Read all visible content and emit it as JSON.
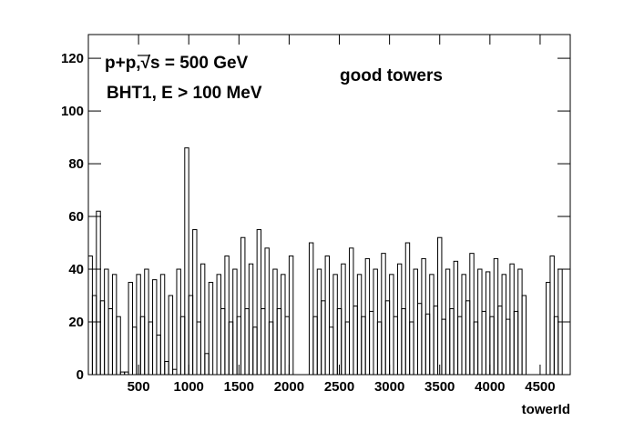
{
  "chart_data": {
    "type": "histogram",
    "annotations": [
      "p+p,√s = 500 GeV",
      "BHT1, E > 100 MeV",
      "good towers"
    ],
    "xlabel": "towerId",
    "color": "#000000",
    "bins": [
      0,
      40,
      80,
      120,
      160,
      200,
      240,
      280,
      320,
      360,
      400,
      440,
      480,
      520,
      560,
      600,
      640,
      680,
      720,
      760,
      800,
      840,
      880,
      920,
      960,
      1000,
      1040,
      1080,
      1120,
      1160,
      1200,
      1240,
      1280,
      1320,
      1360,
      1400,
      1440,
      1480,
      1520,
      1560,
      1600,
      1640,
      1680,
      1720,
      1760,
      1800,
      1840,
      1880,
      1920,
      1960,
      2000,
      2040,
      2080,
      2120,
      2160,
      2200,
      2240,
      2280,
      2320,
      2360,
      2400,
      2440,
      2480,
      2520,
      2560,
      2600,
      2640,
      2680,
      2720,
      2760,
      2800,
      2840,
      2880,
      2920,
      2960,
      3000,
      3040,
      3080,
      3120,
      3160,
      3200,
      3240,
      3280,
      3320,
      3360,
      3400,
      3440,
      3480,
      3520,
      3560,
      3600,
      3640,
      3680,
      3720,
      3760,
      3800,
      3840,
      3880,
      3920,
      3960,
      4000,
      4040,
      4080,
      4120,
      4160,
      4200,
      4240,
      4280,
      4320,
      4360,
      4400,
      4440,
      4480,
      4520,
      4560,
      4600,
      4640,
      4680,
      4720,
      4760,
      4800
    ],
    "values": [
      45,
      30,
      62,
      28,
      40,
      25,
      38,
      22,
      1,
      1,
      35,
      18,
      38,
      22,
      40,
      20,
      36,
      15,
      38,
      5,
      30,
      2,
      40,
      22,
      86,
      30,
      55,
      20,
      42,
      8,
      35,
      0,
      38,
      25,
      45,
      20,
      40,
      22,
      52,
      25,
      42,
      18,
      55,
      25,
      48,
      20,
      40,
      25,
      38,
      22,
      45,
      0,
      0,
      0,
      0,
      50,
      22,
      40,
      28,
      45,
      18,
      38,
      25,
      42,
      20,
      48,
      26,
      38,
      22,
      44,
      24,
      40,
      20,
      46,
      28,
      38,
      22,
      42,
      25,
      50,
      20,
      40,
      27,
      44,
      23,
      38,
      26,
      52,
      21,
      40,
      25,
      43,
      22,
      38,
      28,
      46,
      20,
      40,
      24,
      39,
      22,
      44,
      26,
      38,
      21,
      42,
      24,
      40,
      30,
      0,
      0,
      0,
      0,
      0,
      35,
      45,
      22,
      40,
      0,
      0
    ],
    "xlim": [
      0,
      4800
    ],
    "ylim": [
      0,
      129
    ],
    "xticks": [
      500,
      1000,
      1500,
      2000,
      2500,
      3000,
      3500,
      4000,
      4500
    ],
    "yticks": [
      0,
      20,
      40,
      60,
      80,
      100,
      120
    ]
  }
}
